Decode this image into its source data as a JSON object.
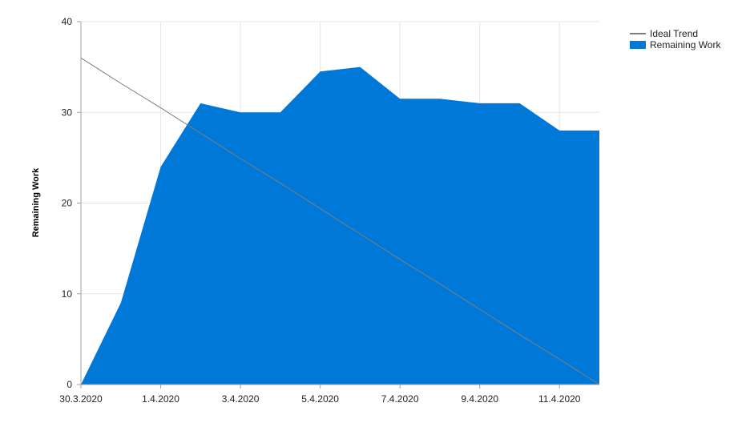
{
  "chart_data": {
    "type": "area",
    "xlabel": "",
    "ylabel": "Remaining Work",
    "ylim": [
      0,
      40
    ],
    "yticks": [
      0,
      10,
      20,
      30,
      40
    ],
    "x_tick_labels": [
      "30.3.2020",
      "1.4.2020",
      "3.4.2020",
      "5.4.2020",
      "7.4.2020",
      "9.4.2020",
      "11.4.2020"
    ],
    "x": [
      "30.3.2020",
      "31.3.2020",
      "1.4.2020",
      "2.4.2020",
      "3.4.2020",
      "4.4.2020",
      "5.4.2020",
      "6.4.2020",
      "7.4.2020",
      "8.4.2020",
      "9.4.2020",
      "10.4.2020",
      "11.4.2020",
      "12.4.2020"
    ],
    "series": [
      {
        "name": "Ideal Trend",
        "type": "line",
        "color": "#7f7f7f",
        "values": [
          36,
          33.2,
          30.5,
          27.7,
          24.9,
          22.2,
          19.4,
          16.6,
          13.8,
          11.1,
          8.3,
          5.5,
          2.8,
          0
        ]
      },
      {
        "name": "Remaining Work",
        "type": "area",
        "color": "#0078d7",
        "values": [
          0,
          9,
          24,
          31,
          30,
          30,
          34.5,
          35,
          31.5,
          31.5,
          31,
          31,
          28,
          28
        ]
      }
    ],
    "grid": true,
    "legend_position": "top-right"
  }
}
